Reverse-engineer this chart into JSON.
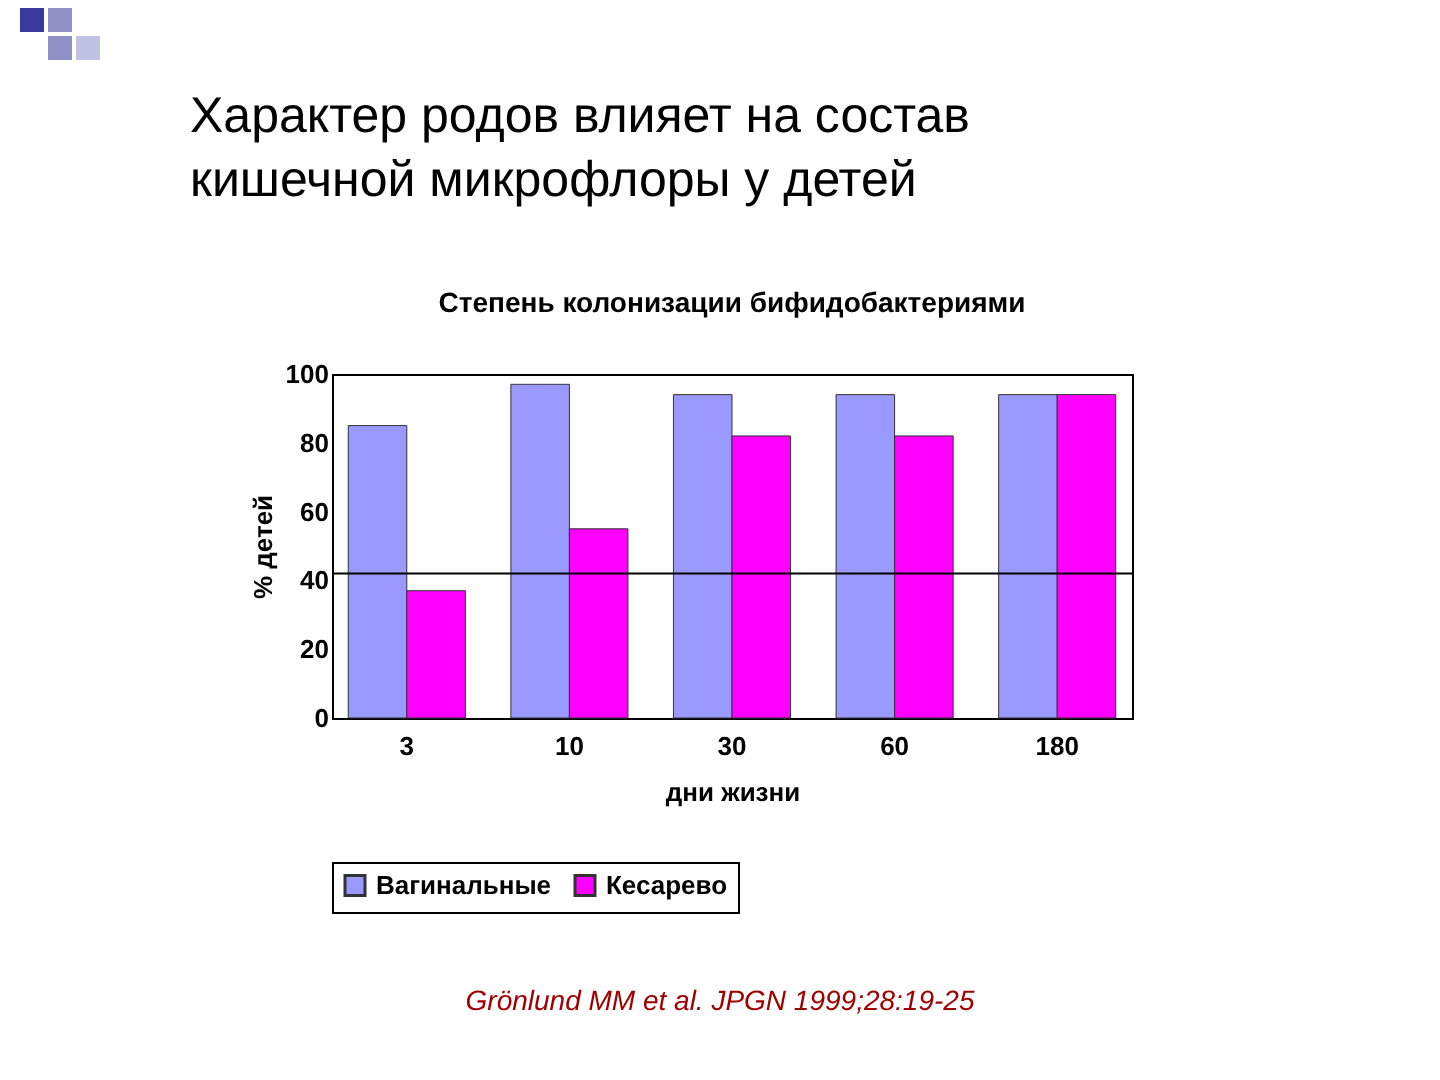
{
  "chart_data": {
    "type": "bar",
    "title": "Характер родов влияет на состав кишечной микрофлоры у детей",
    "subtitle": "Степень колонизации бифидобактериями",
    "xlabel": "дни жизни",
    "ylabel": "% детей",
    "categories": [
      "3",
      "10",
      "30",
      "60",
      "180"
    ],
    "series": [
      {
        "name": "Вагинальные",
        "color": "#9999ff",
        "values": [
          85,
          97,
          94,
          94,
          94
        ]
      },
      {
        "name": "Кесарево",
        "color": "#ff00ff",
        "values": [
          37,
          55,
          82,
          82,
          94
        ]
      }
    ],
    "ylim": [
      0,
      100
    ],
    "yticks": [
      0,
      20,
      40,
      60,
      80,
      100
    ],
    "ref_lines": [
      {
        "axis": "y",
        "value": 42
      }
    ],
    "legend": "bottom",
    "annotations": [
      "Grönlund MM et al. JPGN 1999;28:19-25"
    ]
  }
}
